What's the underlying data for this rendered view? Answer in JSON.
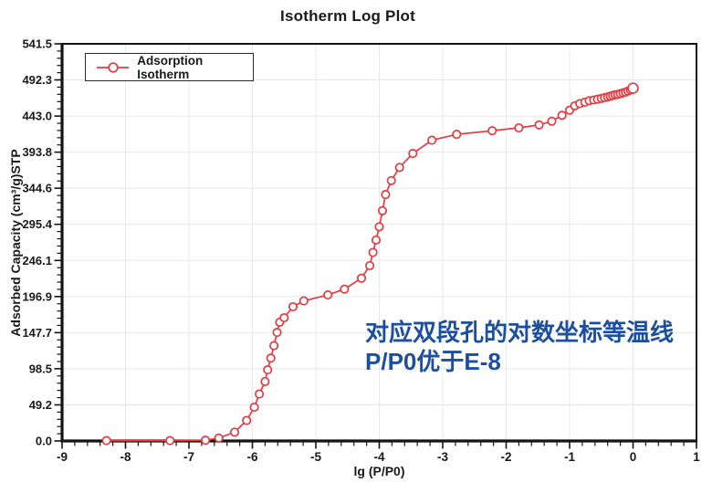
{
  "title": "Isotherm Log Plot",
  "legend": {
    "label": "Adsorption Isotherm"
  },
  "annotation": {
    "line1": "对应双段孔的对数坐标等温线",
    "line2": "P/P0优于E-8",
    "color": "#1c4fa0"
  },
  "colors": {
    "series_red": "#e8393f",
    "grid": "#e8e8e8",
    "axis": "#141414",
    "text": "#1a1a1a",
    "annotation_blue": "#1c4fa0",
    "background": "#ffffff"
  },
  "chart_data": {
    "type": "line",
    "title": "Isotherm Log Plot",
    "xlabel": "lg (P/P0)",
    "ylabel": "Adsorbed Capacity (cm³/g)STP",
    "xlim": [
      -9,
      1
    ],
    "ylim": [
      0,
      541.5
    ],
    "grid": true,
    "legend_position": "upper-left",
    "x_ticks": [
      -9,
      -8,
      -7,
      -6,
      -5,
      -4,
      -3,
      -2,
      -1,
      0,
      1
    ],
    "x_tick_labels": [
      "-9",
      "-8",
      "-7",
      "-6",
      "-5",
      "-4",
      "-3",
      "-2",
      "-1",
      "0",
      "1"
    ],
    "y_ticks": [
      0,
      49.2,
      98.5,
      147.7,
      196.9,
      246.1,
      295.4,
      344.6,
      393.8,
      443.0,
      492.3,
      541.5
    ],
    "y_tick_labels": [
      "0.0",
      "49.2",
      "98.5",
      "147.7",
      "196.9",
      "246.1",
      "295.4",
      "344.6",
      "393.8",
      "443.0",
      "492.3",
      "541.5"
    ],
    "minor_ticks_per_interval": 4,
    "series": [
      {
        "name": "Adsorption Isotherm",
        "color": "#e8393f",
        "marker": "open-circle",
        "points": [
          [
            -8.3,
            0.5
          ],
          [
            -7.3,
            0.5
          ],
          [
            -6.74,
            1
          ],
          [
            -6.53,
            4
          ],
          [
            -6.28,
            12
          ],
          [
            -6.09,
            28
          ],
          [
            -5.97,
            46
          ],
          [
            -5.89,
            64
          ],
          [
            -5.8,
            81
          ],
          [
            -5.76,
            97
          ],
          [
            -5.71,
            113
          ],
          [
            -5.66,
            130
          ],
          [
            -5.61,
            148
          ],
          [
            -5.57,
            162
          ],
          [
            -5.5,
            168
          ],
          [
            -5.36,
            183
          ],
          [
            -5.19,
            191
          ],
          [
            -4.81,
            199
          ],
          [
            -4.55,
            207
          ],
          [
            -4.28,
            222
          ],
          [
            -4.15,
            239
          ],
          [
            -4.1,
            257
          ],
          [
            -4.05,
            274
          ],
          [
            -4.0,
            292
          ],
          [
            -3.95,
            314
          ],
          [
            -3.9,
            336
          ],
          [
            -3.81,
            355
          ],
          [
            -3.68,
            373
          ],
          [
            -3.47,
            392
          ],
          [
            -3.17,
            410
          ],
          [
            -2.78,
            418
          ],
          [
            -2.22,
            423
          ],
          [
            -1.8,
            427
          ],
          [
            -1.48,
            431
          ],
          [
            -1.28,
            436
          ],
          [
            -1.12,
            444
          ],
          [
            -1.0,
            451
          ],
          [
            -0.92,
            457
          ],
          [
            -0.84,
            460
          ],
          [
            -0.76,
            462
          ],
          [
            -0.69,
            464
          ],
          [
            -0.62,
            465
          ],
          [
            -0.56,
            466
          ],
          [
            -0.5,
            467
          ],
          [
            -0.45,
            468
          ],
          [
            -0.4,
            469
          ],
          [
            -0.36,
            470
          ],
          [
            -0.32,
            471
          ],
          [
            -0.28,
            472
          ],
          [
            -0.24,
            472.5
          ],
          [
            -0.2,
            473.5
          ],
          [
            -0.16,
            474.5
          ],
          [
            -0.12,
            475.5
          ],
          [
            -0.08,
            477
          ],
          [
            -0.04,
            478.5
          ],
          [
            0.0,
            481
          ]
        ]
      }
    ]
  }
}
